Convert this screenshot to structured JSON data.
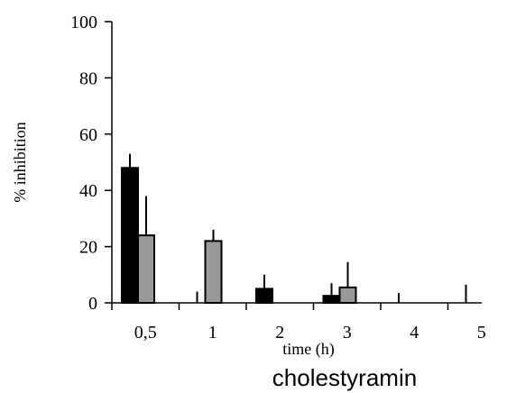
{
  "chart_data": {
    "type": "bar",
    "categories": [
      "0,5",
      "1",
      "2",
      "3",
      "4",
      "5"
    ],
    "series": [
      {
        "values": [
          48,
          0,
          5,
          2.5,
          0,
          0
        ],
        "errors": [
          5,
          4,
          5,
          4.5,
          3.5,
          6.5
        ],
        "color": "#000000"
      },
      {
        "values": [
          24,
          22,
          0,
          5.5,
          0,
          0
        ],
        "errors": [
          14,
          4,
          0,
          9,
          0,
          0
        ],
        "color": "#999999"
      }
    ],
    "ylabel": "% inhibition",
    "xlabel": "time (h)",
    "caption": "cholestyramin",
    "ylim": [
      0,
      100
    ],
    "yticks": [
      "0",
      "20",
      "40",
      "60",
      "80",
      "100"
    ]
  }
}
